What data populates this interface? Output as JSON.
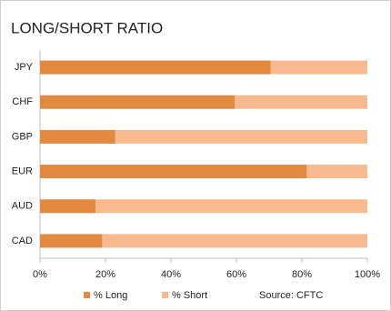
{
  "chart_data": {
    "type": "stacked-bar-horizontal",
    "title": "LONG/SHORT RATIO",
    "categories": [
      "JPY",
      "CHF",
      "GBP",
      "EUR",
      "AUD",
      "CAD"
    ],
    "series": [
      {
        "name": "% Long",
        "color": "#e2883f",
        "values": [
          70.5,
          59.5,
          23,
          81.5,
          17,
          19
        ]
      },
      {
        "name": "% Short",
        "color": "#f9b98f",
        "values": [
          29.5,
          40.5,
          77,
          18.5,
          83,
          81
        ]
      }
    ],
    "xlim": [
      0,
      100
    ],
    "xticks": [
      {
        "value": 0,
        "label": "0%"
      },
      {
        "value": 20,
        "label": "20%"
      },
      {
        "value": 40,
        "label": "40%"
      },
      {
        "value": 60,
        "label": "60%"
      },
      {
        "value": 80,
        "label": "80%"
      },
      {
        "value": 100,
        "label": "100%"
      }
    ],
    "grid": false,
    "annotation": "Source: CFTC"
  }
}
